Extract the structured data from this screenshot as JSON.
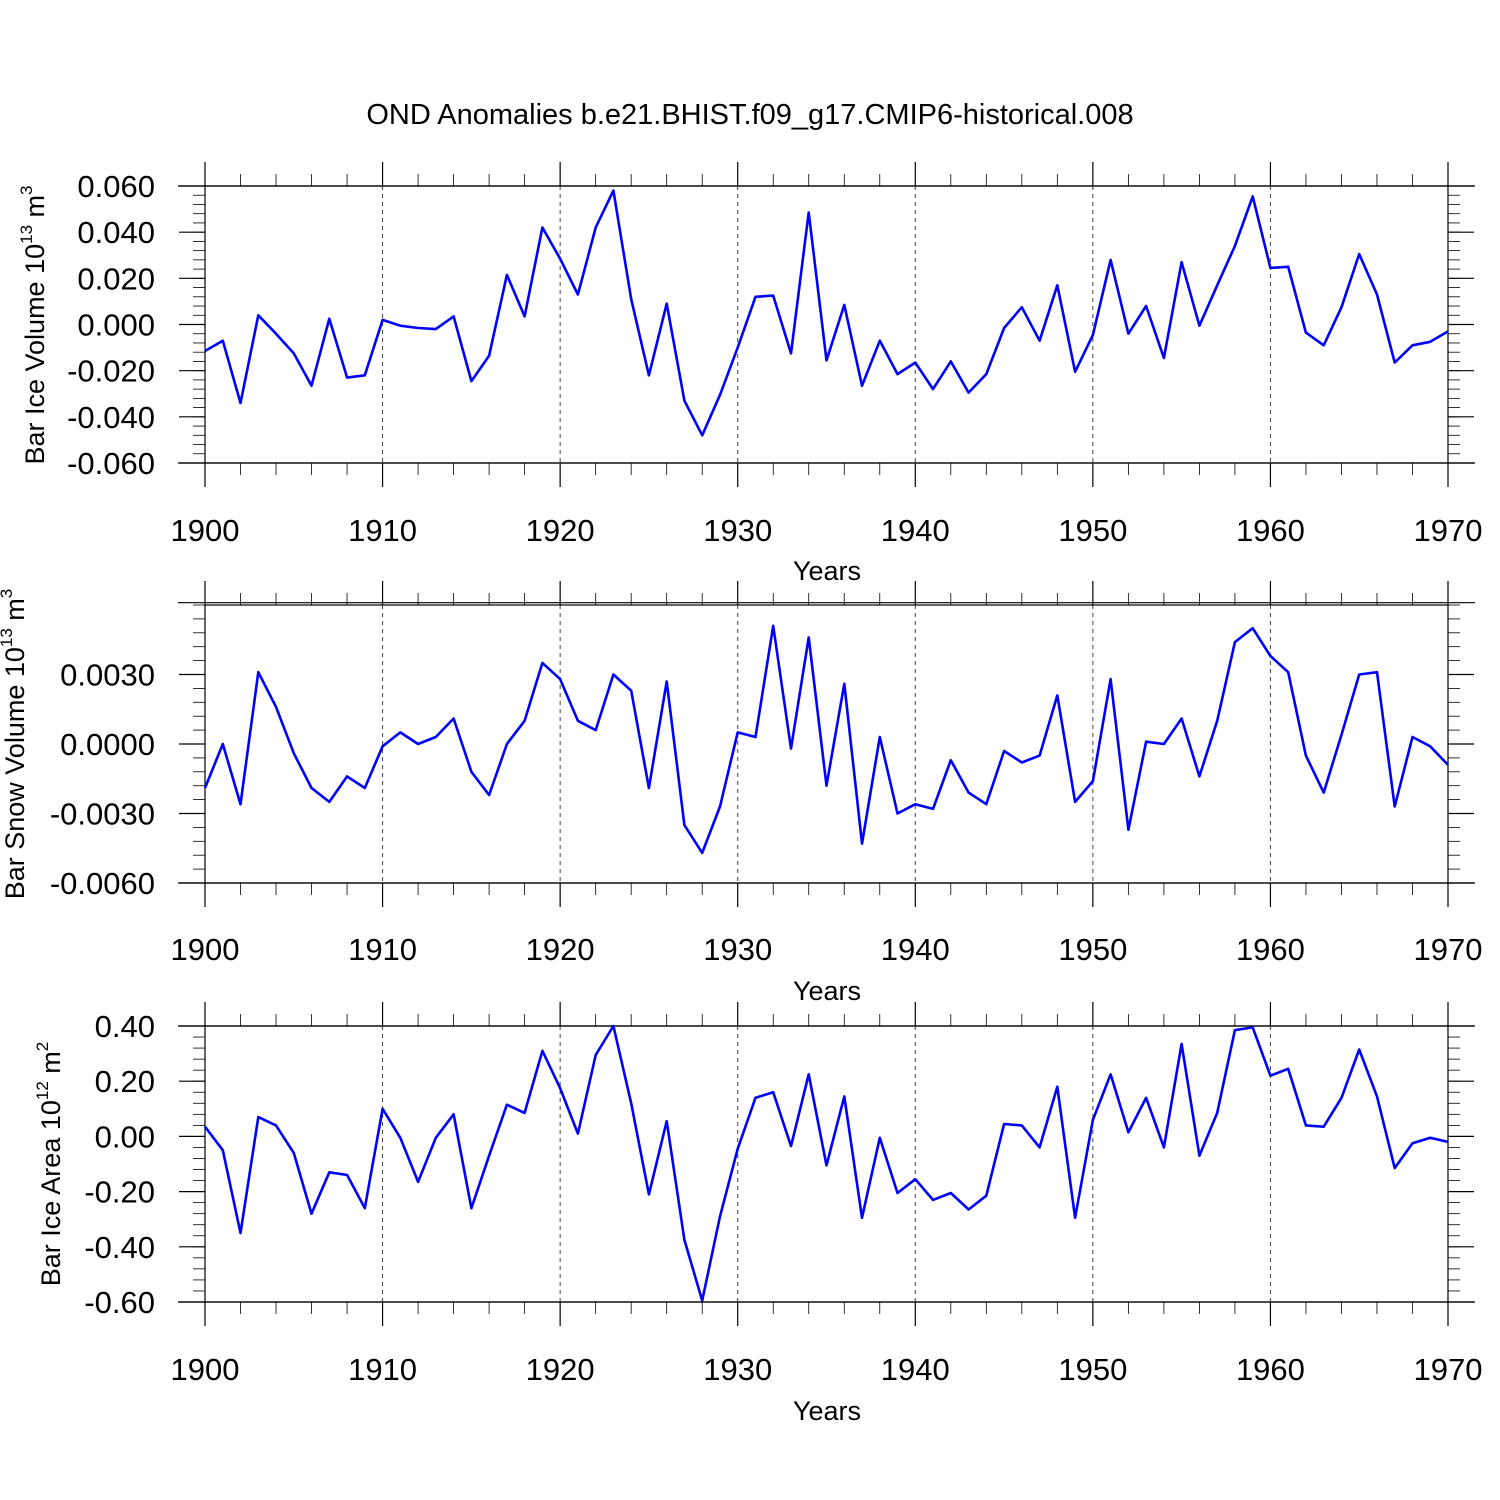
{
  "title": "OND Anomalies b.e21.BHIST.f09_g17.CMIP6-historical.008",
  "colors": {
    "line": "#0000ff",
    "axis": "#000000",
    "grid": "#444444"
  },
  "chart_data": [
    {
      "type": "line",
      "ylabel": {
        "text": "Bar Ice Volume 10",
        "sup": "13",
        "unit": " m",
        "unit_sup": "3"
      },
      "xlabel": "Years",
      "xlim": [
        1900,
        1970
      ],
      "ylim": [
        -0.06,
        0.06
      ],
      "reference_line": 0.06,
      "yticks": [
        {
          "value": 0.06,
          "label": "0.060"
        },
        {
          "value": 0.04,
          "label": "0.040"
        },
        {
          "value": 0.02,
          "label": "0.020"
        },
        {
          "value": 0.0,
          "label": "0.000"
        },
        {
          "value": -0.02,
          "label": "-0.020"
        },
        {
          "value": -0.04,
          "label": "-0.040"
        },
        {
          "value": -0.06,
          "label": "-0.060"
        }
      ],
      "xticks": [
        "1900",
        "1910",
        "1920",
        "1930",
        "1940",
        "1950",
        "1960",
        "1970"
      ],
      "x_start": 1900,
      "values": [
        -0.0115,
        -0.007,
        -0.034,
        0.004,
        -0.004,
        -0.0125,
        -0.0265,
        0.0025,
        -0.023,
        -0.022,
        0.002,
        -0.0005,
        -0.0015,
        -0.002,
        0.0035,
        -0.0245,
        -0.0135,
        0.0215,
        0.0035,
        0.042,
        0.0285,
        0.013,
        0.042,
        0.058,
        0.011,
        -0.022,
        0.009,
        -0.033,
        -0.048,
        -0.0305,
        -0.01,
        0.012,
        0.0125,
        -0.0125,
        0.0485,
        -0.0155,
        0.0085,
        -0.0265,
        -0.007,
        -0.0215,
        -0.0165,
        -0.028,
        -0.016,
        -0.0295,
        -0.0215,
        -0.0015,
        0.0075,
        -0.007,
        0.017,
        -0.0205,
        -0.0045,
        0.028,
        -0.004,
        0.008,
        -0.0145,
        0.027,
        -0.0005,
        0.017,
        0.034,
        0.0555,
        0.0245,
        0.025,
        -0.0035,
        -0.009,
        0.0075,
        0.0305,
        0.013,
        -0.0165,
        -0.009,
        -0.0075,
        -0.003
      ]
    },
    {
      "type": "line",
      "ylabel": {
        "text": "Bar Snow Volume 10",
        "sup": "13",
        "unit": " m",
        "unit_sup": "3"
      },
      "xlabel": "Years",
      "xlim": [
        1900,
        1970
      ],
      "ylim": [
        -0.006,
        0.006
      ],
      "reference_line": 0.0061,
      "yticks": [
        {
          "value": 0.003,
          "label": "0.0030"
        },
        {
          "value": 0.0,
          "label": "0.0000"
        },
        {
          "value": -0.003,
          "label": "-0.0030"
        },
        {
          "value": -0.006,
          "label": "-0.0060"
        }
      ],
      "xticks": [
        "1900",
        "1910",
        "1920",
        "1930",
        "1940",
        "1950",
        "1960",
        "1970"
      ],
      "x_start": 1900,
      "values": [
        -0.0019,
        0.0,
        -0.0026,
        0.0031,
        0.0016,
        -0.0004,
        -0.0019,
        -0.0025,
        -0.0014,
        -0.0019,
        -0.0001,
        0.0005,
        0.0,
        0.0003,
        0.0011,
        -0.0012,
        -0.0022,
        0.0,
        0.001,
        0.0035,
        0.0028,
        0.001,
        0.0006,
        0.003,
        0.0023,
        -0.0019,
        0.0027,
        -0.0035,
        -0.0047,
        -0.0027,
        0.0005,
        0.0003,
        0.0051,
        -0.0002,
        0.0046,
        -0.0018,
        0.0026,
        -0.0043,
        0.0003,
        -0.003,
        -0.0026,
        -0.0028,
        -0.0007,
        -0.0021,
        -0.0026,
        -0.0003,
        -0.0008,
        -0.0005,
        0.0021,
        -0.0025,
        -0.0016,
        0.0028,
        -0.0037,
        0.0001,
        0.0,
        0.0011,
        -0.0014,
        0.001,
        0.0044,
        0.005,
        0.0038,
        0.0031,
        -0.0005,
        -0.0021,
        0.0004,
        0.003,
        0.0031,
        -0.0027,
        0.0003,
        -0.0001,
        -0.0009
      ]
    },
    {
      "type": "line",
      "ylabel": {
        "text": "Bar Ice Area 10",
        "sup": "12",
        "unit": " m",
        "unit_sup": "2"
      },
      "xlabel": "Years",
      "xlim": [
        1900,
        1970
      ],
      "ylim": [
        -0.6,
        0.4
      ],
      "reference_line": 0.4,
      "yticks": [
        {
          "value": 0.4,
          "label": "0.40"
        },
        {
          "value": 0.2,
          "label": "0.20"
        },
        {
          "value": 0.0,
          "label": "0.00"
        },
        {
          "value": -0.2,
          "label": "-0.20"
        },
        {
          "value": -0.4,
          "label": "-0.40"
        },
        {
          "value": -0.6,
          "label": "-0.60"
        }
      ],
      "xticks": [
        "1900",
        "1910",
        "1920",
        "1930",
        "1940",
        "1950",
        "1960",
        "1970"
      ],
      "x_start": 1900,
      "values": [
        0.035,
        -0.05,
        -0.35,
        0.07,
        0.04,
        -0.06,
        -0.28,
        -0.13,
        -0.14,
        -0.26,
        0.1,
        -0.005,
        -0.165,
        -0.005,
        0.08,
        -0.26,
        -0.07,
        0.115,
        0.085,
        0.31,
        0.175,
        0.01,
        0.295,
        0.4,
        0.12,
        -0.21,
        0.055,
        -0.375,
        -0.595,
        -0.29,
        -0.045,
        0.14,
        0.16,
        -0.035,
        0.225,
        -0.105,
        0.145,
        -0.295,
        -0.005,
        -0.205,
        -0.155,
        -0.23,
        -0.205,
        -0.265,
        -0.215,
        0.045,
        0.04,
        -0.04,
        0.18,
        -0.295,
        0.06,
        0.225,
        0.015,
        0.14,
        -0.04,
        0.335,
        -0.07,
        0.085,
        0.385,
        0.395,
        0.22,
        0.245,
        0.04,
        0.035,
        0.14,
        0.315,
        0.145,
        -0.115,
        -0.025,
        -0.005,
        -0.02
      ]
    }
  ]
}
